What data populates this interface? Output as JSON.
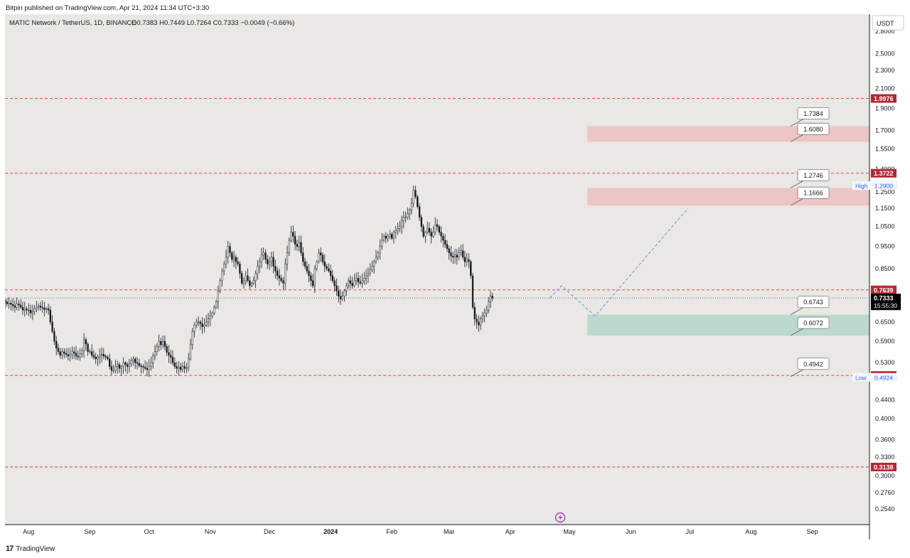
{
  "header": {
    "publisher": "Bitpin published on TradingView.com, Apr 21, 2024 11:34 UTC+3:30"
  },
  "footer": {
    "brand": "TradingView",
    "logo_text": "17"
  },
  "colors": {
    "background": "#e9e8e5",
    "candle": "#131722",
    "level_line": "#d03a3a",
    "level_badge": "#b22833",
    "resistance_zone": "#eec5c5",
    "support_zone": "#bcd9cf",
    "projection": "#5b8def",
    "axis_text": "#131722",
    "current_badge": "#000000"
  },
  "chart_data": {
    "type": "candlestick",
    "symbol_info": "MATIC Network / TetherUS, 1D, BINANCE",
    "ohlc_label": "O0.7383  H0.7449  L0.7264  C0.7333  −0.0049 (−0.66%)",
    "currency": "USDT",
    "y_scale": "log",
    "y_range": [
      0.235,
      3.05
    ],
    "x_range": [
      "2023-07-20",
      "2024-09-30"
    ],
    "y_ticks": [
      "2.8000",
      "2.5000",
      "2.3000",
      "2.1000",
      "1.9000",
      "1.7000",
      "1.5500",
      "1.4000",
      "1.2500",
      "1.1500",
      "1.0500",
      "0.9500",
      "0.8500",
      "0.6500",
      "0.5900",
      "0.5300",
      "0.4400",
      "0.4000",
      "0.3600",
      "0.3300",
      "0.3000",
      "0.2760",
      "0.2540"
    ],
    "x_ticks": [
      {
        "label": "Aug",
        "date": "2023-08-01",
        "bold": false
      },
      {
        "label": "Sep",
        "date": "2023-09-01",
        "bold": false
      },
      {
        "label": "Oct",
        "date": "2023-10-01",
        "bold": false
      },
      {
        "label": "Nov",
        "date": "2023-11-01",
        "bold": false
      },
      {
        "label": "Dec",
        "date": "2023-12-01",
        "bold": false
      },
      {
        "label": "2024",
        "date": "2024-01-01",
        "bold": true
      },
      {
        "label": "Feb",
        "date": "2024-02-01",
        "bold": false
      },
      {
        "label": "Mar",
        "date": "2024-03-01",
        "bold": false
      },
      {
        "label": "Apr",
        "date": "2024-04-01",
        "bold": false
      },
      {
        "label": "May",
        "date": "2024-05-01",
        "bold": false
      },
      {
        "label": "Jun",
        "date": "2024-06-01",
        "bold": false
      },
      {
        "label": "Jul",
        "date": "2024-07-01",
        "bold": false
      },
      {
        "label": "Aug",
        "date": "2024-08-01",
        "bold": false
      },
      {
        "label": "Sep",
        "date": "2024-09-01",
        "bold": false
      }
    ],
    "start_date": "2023-07-20",
    "closes": [
      0.72,
      0.712,
      0.715,
      0.71,
      0.705,
      0.7,
      0.712,
      0.708,
      0.7,
      0.69,
      0.695,
      0.69,
      0.69,
      0.68,
      0.685,
      0.695,
      0.7,
      0.705,
      0.7,
      0.698,
      0.692,
      0.695,
      0.69,
      0.65,
      0.62,
      0.59,
      0.57,
      0.56,
      0.55,
      0.56,
      0.555,
      0.552,
      0.548,
      0.552,
      0.56,
      0.556,
      0.548,
      0.545,
      0.555,
      0.562,
      0.595,
      0.582,
      0.56,
      0.56,
      0.55,
      0.545,
      0.54,
      0.545,
      0.55,
      0.553,
      0.548,
      0.545,
      0.54,
      0.52,
      0.51,
      0.51,
      0.52,
      0.525,
      0.515,
      0.52,
      0.53,
      0.525,
      0.52,
      0.527,
      0.535,
      0.54,
      0.53,
      0.528,
      0.522,
      0.52,
      0.518,
      0.515,
      0.512,
      0.52,
      0.53,
      0.548,
      0.56,
      0.575,
      0.59,
      0.58,
      0.59,
      0.575,
      0.558,
      0.55,
      0.545,
      0.53,
      0.52,
      0.515,
      0.518,
      0.512,
      0.52,
      0.515,
      0.517,
      0.54,
      0.58,
      0.62,
      0.64,
      0.65,
      0.65,
      0.645,
      0.635,
      0.64,
      0.65,
      0.66,
      0.67,
      0.68,
      0.7,
      0.72,
      0.76,
      0.8,
      0.84,
      0.87,
      0.9,
      0.95,
      0.92,
      0.89,
      0.9,
      0.88,
      0.87,
      0.83,
      0.79,
      0.8,
      0.82,
      0.8,
      0.78,
      0.79,
      0.8,
      0.83,
      0.86,
      0.88,
      0.91,
      0.92,
      0.89,
      0.87,
      0.88,
      0.9,
      0.86,
      0.84,
      0.82,
      0.81,
      0.8,
      0.79,
      0.87,
      0.92,
      0.98,
      1.02,
      1.0,
      0.96,
      0.95,
      0.97,
      0.92,
      0.88,
      0.86,
      0.84,
      0.82,
      0.8,
      0.78,
      0.85,
      0.88,
      0.92,
      0.91,
      0.88,
      0.86,
      0.85,
      0.84,
      0.82,
      0.8,
      0.78,
      0.76,
      0.74,
      0.73,
      0.74,
      0.76,
      0.78,
      0.8,
      0.79,
      0.78,
      0.8,
      0.81,
      0.795,
      0.79,
      0.8,
      0.81,
      0.82,
      0.83,
      0.845,
      0.86,
      0.88,
      0.9,
      0.92,
      0.95,
      0.98,
      1.0,
      0.99,
      1.0,
      1.01,
      0.99,
      1.02,
      1.03,
      1.04,
      1.05,
      1.08,
      1.1,
      1.1,
      1.12,
      1.14,
      1.18,
      1.26,
      1.22,
      1.16,
      1.1,
      1.05,
      1.0,
      1.02,
      1.04,
      1.02,
      1.0,
      1.02,
      1.06,
      1.05,
      1.02,
      1.0,
      0.98,
      0.96,
      0.94,
      0.92,
      0.905,
      0.9,
      0.91,
      0.9,
      0.92,
      0.93,
      0.9,
      0.88,
      0.89,
      0.88,
      0.82,
      0.7,
      0.66,
      0.65,
      0.64,
      0.66,
      0.67,
      0.68,
      0.69,
      0.72,
      0.74,
      0.733
    ],
    "levels": [
      {
        "value": 1.9976,
        "label": "1.9976"
      },
      {
        "value": 1.3722,
        "label": "1.3722"
      },
      {
        "value": 0.7639,
        "label": "0.7639"
      },
      {
        "value": 0.497,
        "label": "0.4970"
      },
      {
        "value": 0.3138,
        "label": "0.3138"
      }
    ],
    "current_price": {
      "value": 0.7333,
      "label": "0.7333",
      "countdown": "15:55:30"
    },
    "high_marker": {
      "label": "High",
      "value": 1.29,
      "value_label": "1.2900"
    },
    "low_marker": {
      "label": "Low",
      "value": 0.4924,
      "value_label": "0.4924"
    },
    "zones": [
      {
        "type": "resistance",
        "top": 1.7384,
        "bottom": 1.608,
        "top_label": "1.7384",
        "bottom_label": "1.6080",
        "start": "2024-05-10"
      },
      {
        "type": "resistance",
        "top": 1.2746,
        "bottom": 1.1666,
        "top_label": "1.2746",
        "bottom_label": "1.1666",
        "start": "2024-05-10"
      },
      {
        "type": "support",
        "top": 0.6743,
        "bottom": 0.6072,
        "top_label": "0.6743",
        "bottom_label": "0.6072",
        "start": "2024-05-10"
      }
    ],
    "projection": [
      {
        "date": "2024-04-21",
        "value": 0.733
      },
      {
        "date": "2024-04-27",
        "value": 0.78
      },
      {
        "date": "2024-05-14",
        "value": 0.67
      },
      {
        "date": "2024-06-30",
        "value": 1.15
      }
    ],
    "single_label": {
      "value": 0.4942,
      "label": "0.4942"
    }
  }
}
